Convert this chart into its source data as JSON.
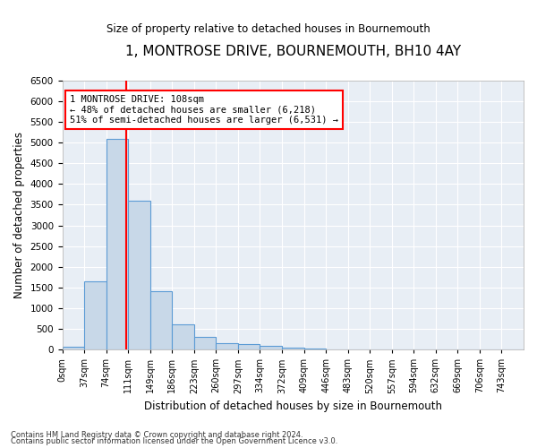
{
  "title": "1, MONTROSE DRIVE, BOURNEMOUTH, BH10 4AY",
  "subtitle": "Size of property relative to detached houses in Bournemouth",
  "xlabel": "Distribution of detached houses by size in Bournemouth",
  "ylabel": "Number of detached properties",
  "bar_color": "#c8d8e8",
  "bar_edge_color": "#5b9bd5",
  "bin_labels": [
    "0sqm",
    "37sqm",
    "74sqm",
    "111sqm",
    "149sqm",
    "186sqm",
    "223sqm",
    "260sqm",
    "297sqm",
    "334sqm",
    "372sqm",
    "409sqm",
    "446sqm",
    "483sqm",
    "520sqm",
    "557sqm",
    "594sqm",
    "632sqm",
    "669sqm",
    "706sqm",
    "743sqm"
  ],
  "bar_values": [
    60,
    1640,
    5080,
    3600,
    1400,
    600,
    300,
    160,
    130,
    95,
    55,
    30,
    5,
    5,
    2,
    2,
    1,
    1,
    1,
    1,
    0
  ],
  "vline_x": 108,
  "bin_width": 37,
  "ylim": [
    0,
    6500
  ],
  "yticks": [
    0,
    500,
    1000,
    1500,
    2000,
    2500,
    3000,
    3500,
    4000,
    4500,
    5000,
    5500,
    6000,
    6500
  ],
  "annotation_text": "1 MONTROSE DRIVE: 108sqm\n← 48% of detached houses are smaller (6,218)\n51% of semi-detached houses are larger (6,531) →",
  "annotation_box_color": "white",
  "annotation_box_edge": "red",
  "vline_color": "red",
  "footer_line1": "Contains HM Land Registry data © Crown copyright and database right 2024.",
  "footer_line2": "Contains public sector information licensed under the Open Government Licence v3.0.",
  "background_color": "#e8eef5",
  "grid_color": "white",
  "figsize": [
    6.0,
    5.0
  ],
  "dpi": 100
}
